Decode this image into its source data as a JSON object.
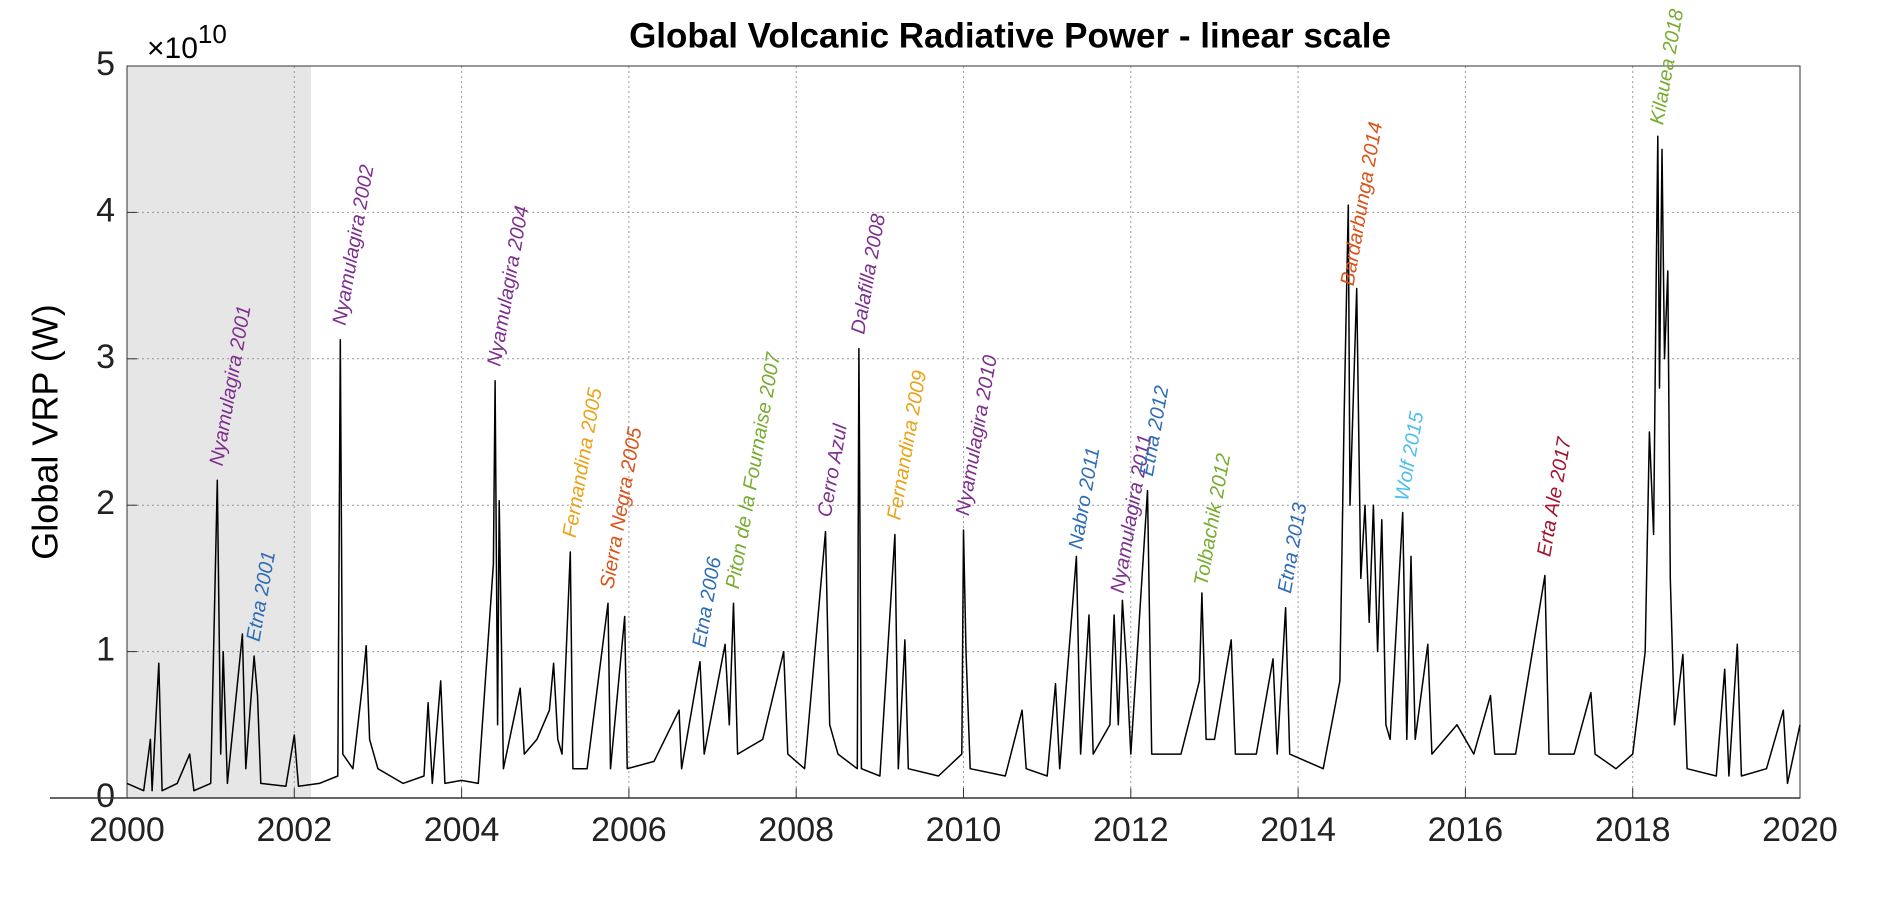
{
  "chart_data": {
    "type": "line",
    "title": "Global Volcanic Radiative Power - linear scale",
    "y_label": "Global VRP (W)",
    "multiplier": "×10",
    "multiplier_exponent": "10",
    "color": "#000000",
    "xlim": [
      2000,
      2020
    ],
    "xticks": [
      2000,
      2002,
      2004,
      2006,
      2008,
      2010,
      2012,
      2014,
      2016,
      2018,
      2020
    ],
    "ylim": [
      0,
      5
    ],
    "yticks": [
      0,
      1,
      2,
      3,
      4,
      5
    ],
    "grid": true,
    "shaded_region": [
      2000,
      2002.2
    ],
    "shaded_color": "#e6e6e6",
    "x": [
      2000.0,
      2000.2,
      2000.28,
      2000.3,
      2000.38,
      2000.42,
      2000.6,
      2000.75,
      2000.8,
      2001.0,
      2001.08,
      2001.12,
      2001.15,
      2001.2,
      2001.38,
      2001.42,
      2001.52,
      2001.56,
      2001.6,
      2001.9,
      2002.0,
      2002.05,
      2002.3,
      2002.52,
      2002.55,
      2002.58,
      2002.7,
      2002.82,
      2002.86,
      2002.9,
      2003.0,
      2003.3,
      2003.55,
      2003.6,
      2003.65,
      2003.75,
      2003.8,
      2004.0,
      2004.2,
      2004.38,
      2004.4,
      2004.43,
      2004.45,
      2004.5,
      2004.7,
      2004.75,
      2004.9,
      2005.05,
      2005.1,
      2005.15,
      2005.2,
      2005.3,
      2005.33,
      2005.5,
      2005.75,
      2005.78,
      2005.95,
      2005.98,
      2006.3,
      2006.6,
      2006.63,
      2006.85,
      2006.9,
      2007.15,
      2007.2,
      2007.25,
      2007.3,
      2007.6,
      2007.85,
      2007.9,
      2008.1,
      2008.35,
      2008.4,
      2008.5,
      2008.73,
      2008.75,
      2008.78,
      2009.0,
      2009.18,
      2009.22,
      2009.3,
      2009.34,
      2009.7,
      2009.98,
      2010.0,
      2010.03,
      2010.08,
      2010.5,
      2010.7,
      2010.75,
      2011.0,
      2011.1,
      2011.15,
      2011.35,
      2011.4,
      2011.5,
      2011.55,
      2011.75,
      2011.8,
      2011.85,
      2011.9,
      2011.95,
      2012.0,
      2012.2,
      2012.25,
      2012.6,
      2012.82,
      2012.85,
      2012.9,
      2013.0,
      2013.2,
      2013.25,
      2013.5,
      2013.7,
      2013.75,
      2013.85,
      2013.9,
      2014.3,
      2014.5,
      2014.55,
      2014.6,
      2014.62,
      2014.7,
      2014.75,
      2014.8,
      2014.85,
      2014.9,
      2014.95,
      2015.0,
      2015.05,
      2015.1,
      2015.25,
      2015.3,
      2015.35,
      2015.4,
      2015.55,
      2015.6,
      2015.9,
      2016.1,
      2016.3,
      2016.35,
      2016.6,
      2016.95,
      2017.0,
      2017.3,
      2017.5,
      2017.55,
      2017.8,
      2018.0,
      2018.15,
      2018.2,
      2018.25,
      2018.28,
      2018.3,
      2018.32,
      2018.35,
      2018.38,
      2018.42,
      2018.45,
      2018.5,
      2018.6,
      2018.65,
      2019.0,
      2019.1,
      2019.15,
      2019.25,
      2019.3,
      2019.6,
      2019.8,
      2019.85,
      2020.0
    ],
    "values": [
      0.1,
      0.05,
      0.4,
      0.05,
      0.92,
      0.05,
      0.1,
      0.3,
      0.05,
      0.1,
      2.17,
      0.3,
      1.0,
      0.1,
      1.12,
      0.2,
      0.97,
      0.7,
      0.1,
      0.08,
      0.43,
      0.08,
      0.1,
      0.15,
      3.13,
      0.3,
      0.2,
      0.8,
      1.04,
      0.4,
      0.2,
      0.1,
      0.15,
      0.65,
      0.1,
      0.8,
      0.1,
      0.12,
      0.1,
      1.6,
      2.85,
      0.5,
      2.03,
      0.2,
      0.75,
      0.3,
      0.4,
      0.6,
      0.92,
      0.4,
      0.3,
      1.68,
      0.2,
      0.2,
      1.33,
      0.2,
      1.24,
      0.2,
      0.25,
      0.6,
      0.2,
      0.93,
      0.3,
      1.05,
      0.5,
      1.33,
      0.3,
      0.4,
      1.0,
      0.3,
      0.2,
      1.82,
      0.5,
      0.3,
      0.2,
      3.07,
      0.2,
      0.15,
      1.8,
      0.2,
      1.08,
      0.2,
      0.15,
      0.3,
      1.83,
      1.0,
      0.2,
      0.15,
      0.6,
      0.2,
      0.15,
      0.78,
      0.2,
      1.65,
      0.3,
      1.25,
      0.3,
      0.5,
      1.25,
      0.5,
      1.35,
      0.9,
      0.3,
      2.1,
      0.3,
      0.3,
      0.8,
      1.4,
      0.4,
      0.4,
      1.08,
      0.3,
      0.3,
      0.95,
      0.3,
      1.3,
      0.3,
      0.2,
      0.8,
      2.6,
      4.05,
      2.0,
      3.48,
      1.5,
      2.0,
      1.2,
      2.0,
      1.0,
      1.9,
      0.5,
      0.4,
      1.95,
      0.4,
      1.65,
      0.4,
      1.05,
      0.3,
      0.5,
      0.3,
      0.7,
      0.3,
      0.3,
      1.52,
      0.3,
      0.3,
      0.72,
      0.3,
      0.2,
      0.3,
      1.0,
      2.5,
      1.8,
      3.5,
      4.52,
      2.8,
      4.43,
      3.0,
      3.6,
      1.5,
      0.5,
      0.98,
      0.2,
      0.15,
      0.88,
      0.15,
      1.05,
      0.15,
      0.2,
      0.6,
      0.1,
      0.5
    ],
    "annotations": [
      {
        "text": "Nyamulagira 2001",
        "x": 2001.08,
        "y": 2.27,
        "color": "#7e2f8e"
      },
      {
        "text": "Etna 2001",
        "x": 2001.52,
        "y": 1.07,
        "color": "#2e6db4"
      },
      {
        "text": "Nyamulagira 2002",
        "x": 2002.55,
        "y": 3.23,
        "color": "#7e2f8e"
      },
      {
        "text": "Nyamulagira 2004",
        "x": 2004.4,
        "y": 2.95,
        "color": "#7e2f8e"
      },
      {
        "text": "Fernandina 2005",
        "x": 2005.3,
        "y": 1.78,
        "color": "#e8a317"
      },
      {
        "text": "Sierra Negra 2005",
        "x": 2005.75,
        "y": 1.43,
        "color": "#d95319"
      },
      {
        "text": "Etna 2006",
        "x": 2006.85,
        "y": 1.03,
        "color": "#2e6db4"
      },
      {
        "text": "Piton de la Fournaise 2007",
        "x": 2007.25,
        "y": 1.43,
        "color": "#77ac30"
      },
      {
        "text": "Cerro Azul",
        "x": 2008.35,
        "y": 1.92,
        "color": "#7e2f8e"
      },
      {
        "text": "Dalafilla 2008",
        "x": 2008.75,
        "y": 3.17,
        "color": "#7e2f8e"
      },
      {
        "text": "Fernandina 2009",
        "x": 2009.18,
        "y": 1.9,
        "color": "#e8a317"
      },
      {
        "text": "Nyamulagira 2010",
        "x": 2010.0,
        "y": 1.93,
        "color": "#7e2f8e"
      },
      {
        "text": "Nabro 2011",
        "x": 2011.35,
        "y": 1.7,
        "color": "#2e6db4"
      },
      {
        "text": "Nyamulagira 2011",
        "x": 2011.85,
        "y": 1.4,
        "color": "#7e2f8e"
      },
      {
        "text": "Etna 2012",
        "x": 2012.2,
        "y": 2.2,
        "color": "#2e6db4"
      },
      {
        "text": "Tolbachik 2012",
        "x": 2012.85,
        "y": 1.45,
        "color": "#77ac30"
      },
      {
        "text": "Etna 2013",
        "x": 2013.85,
        "y": 1.4,
        "color": "#2e6db4"
      },
      {
        "text": "Bardarbunga 2014",
        "x": 2014.6,
        "y": 3.5,
        "color": "#d95319"
      },
      {
        "text": "Wolf 2015",
        "x": 2015.25,
        "y": 2.03,
        "color": "#4dbeee"
      },
      {
        "text": "Erta Ale 2017",
        "x": 2016.95,
        "y": 1.65,
        "color": "#a2142f"
      },
      {
        "text": "Kilauea 2018",
        "x": 2018.3,
        "y": 4.6,
        "color": "#77ac30"
      }
    ]
  }
}
